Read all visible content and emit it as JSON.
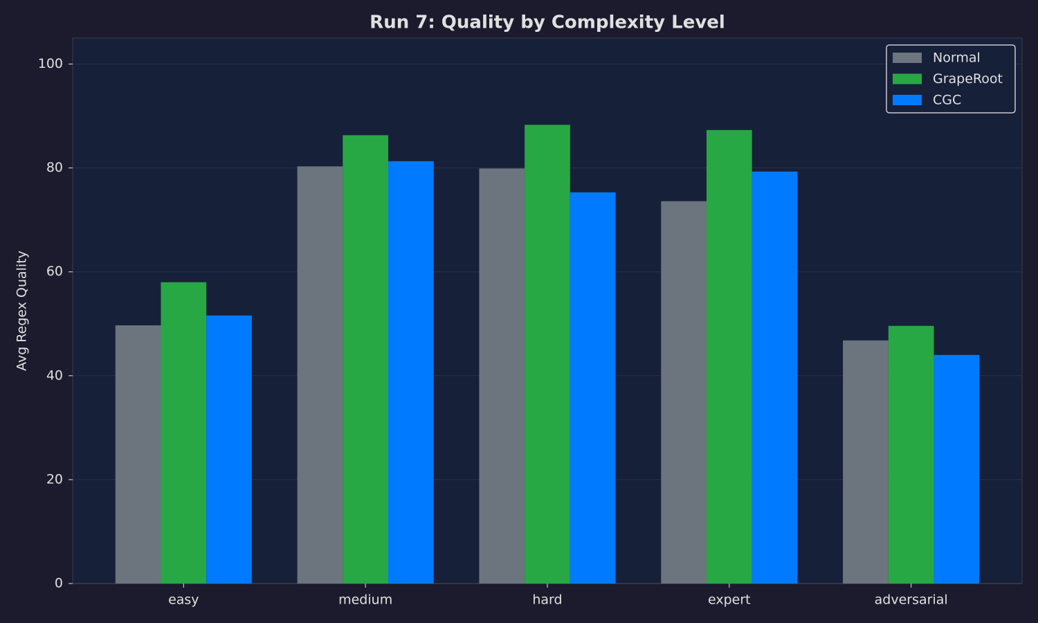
{
  "chart_data": {
    "type": "bar",
    "title": "Run 7: Quality by Complexity Level",
    "y_label": "Avg Regex Quality",
    "categories": [
      "easy",
      "medium",
      "hard",
      "expert",
      "adversarial"
    ],
    "series": [
      {
        "name": "Normal",
        "color": "#6c757d",
        "values": [
          49.7,
          80.3,
          79.9,
          73.6,
          46.8
        ]
      },
      {
        "name": "GrapeRoot",
        "color": "#28a745",
        "values": [
          58.0,
          86.3,
          88.3,
          87.3,
          49.6
        ]
      },
      {
        "name": "CGC",
        "color": "#007bff",
        "values": [
          51.6,
          81.3,
          75.3,
          79.3,
          44.0
        ]
      }
    ],
    "ylim": [
      0,
      105
    ],
    "yticks": [
      0,
      20,
      40,
      60,
      80,
      100
    ],
    "grid": true,
    "legend": "upper right"
  }
}
